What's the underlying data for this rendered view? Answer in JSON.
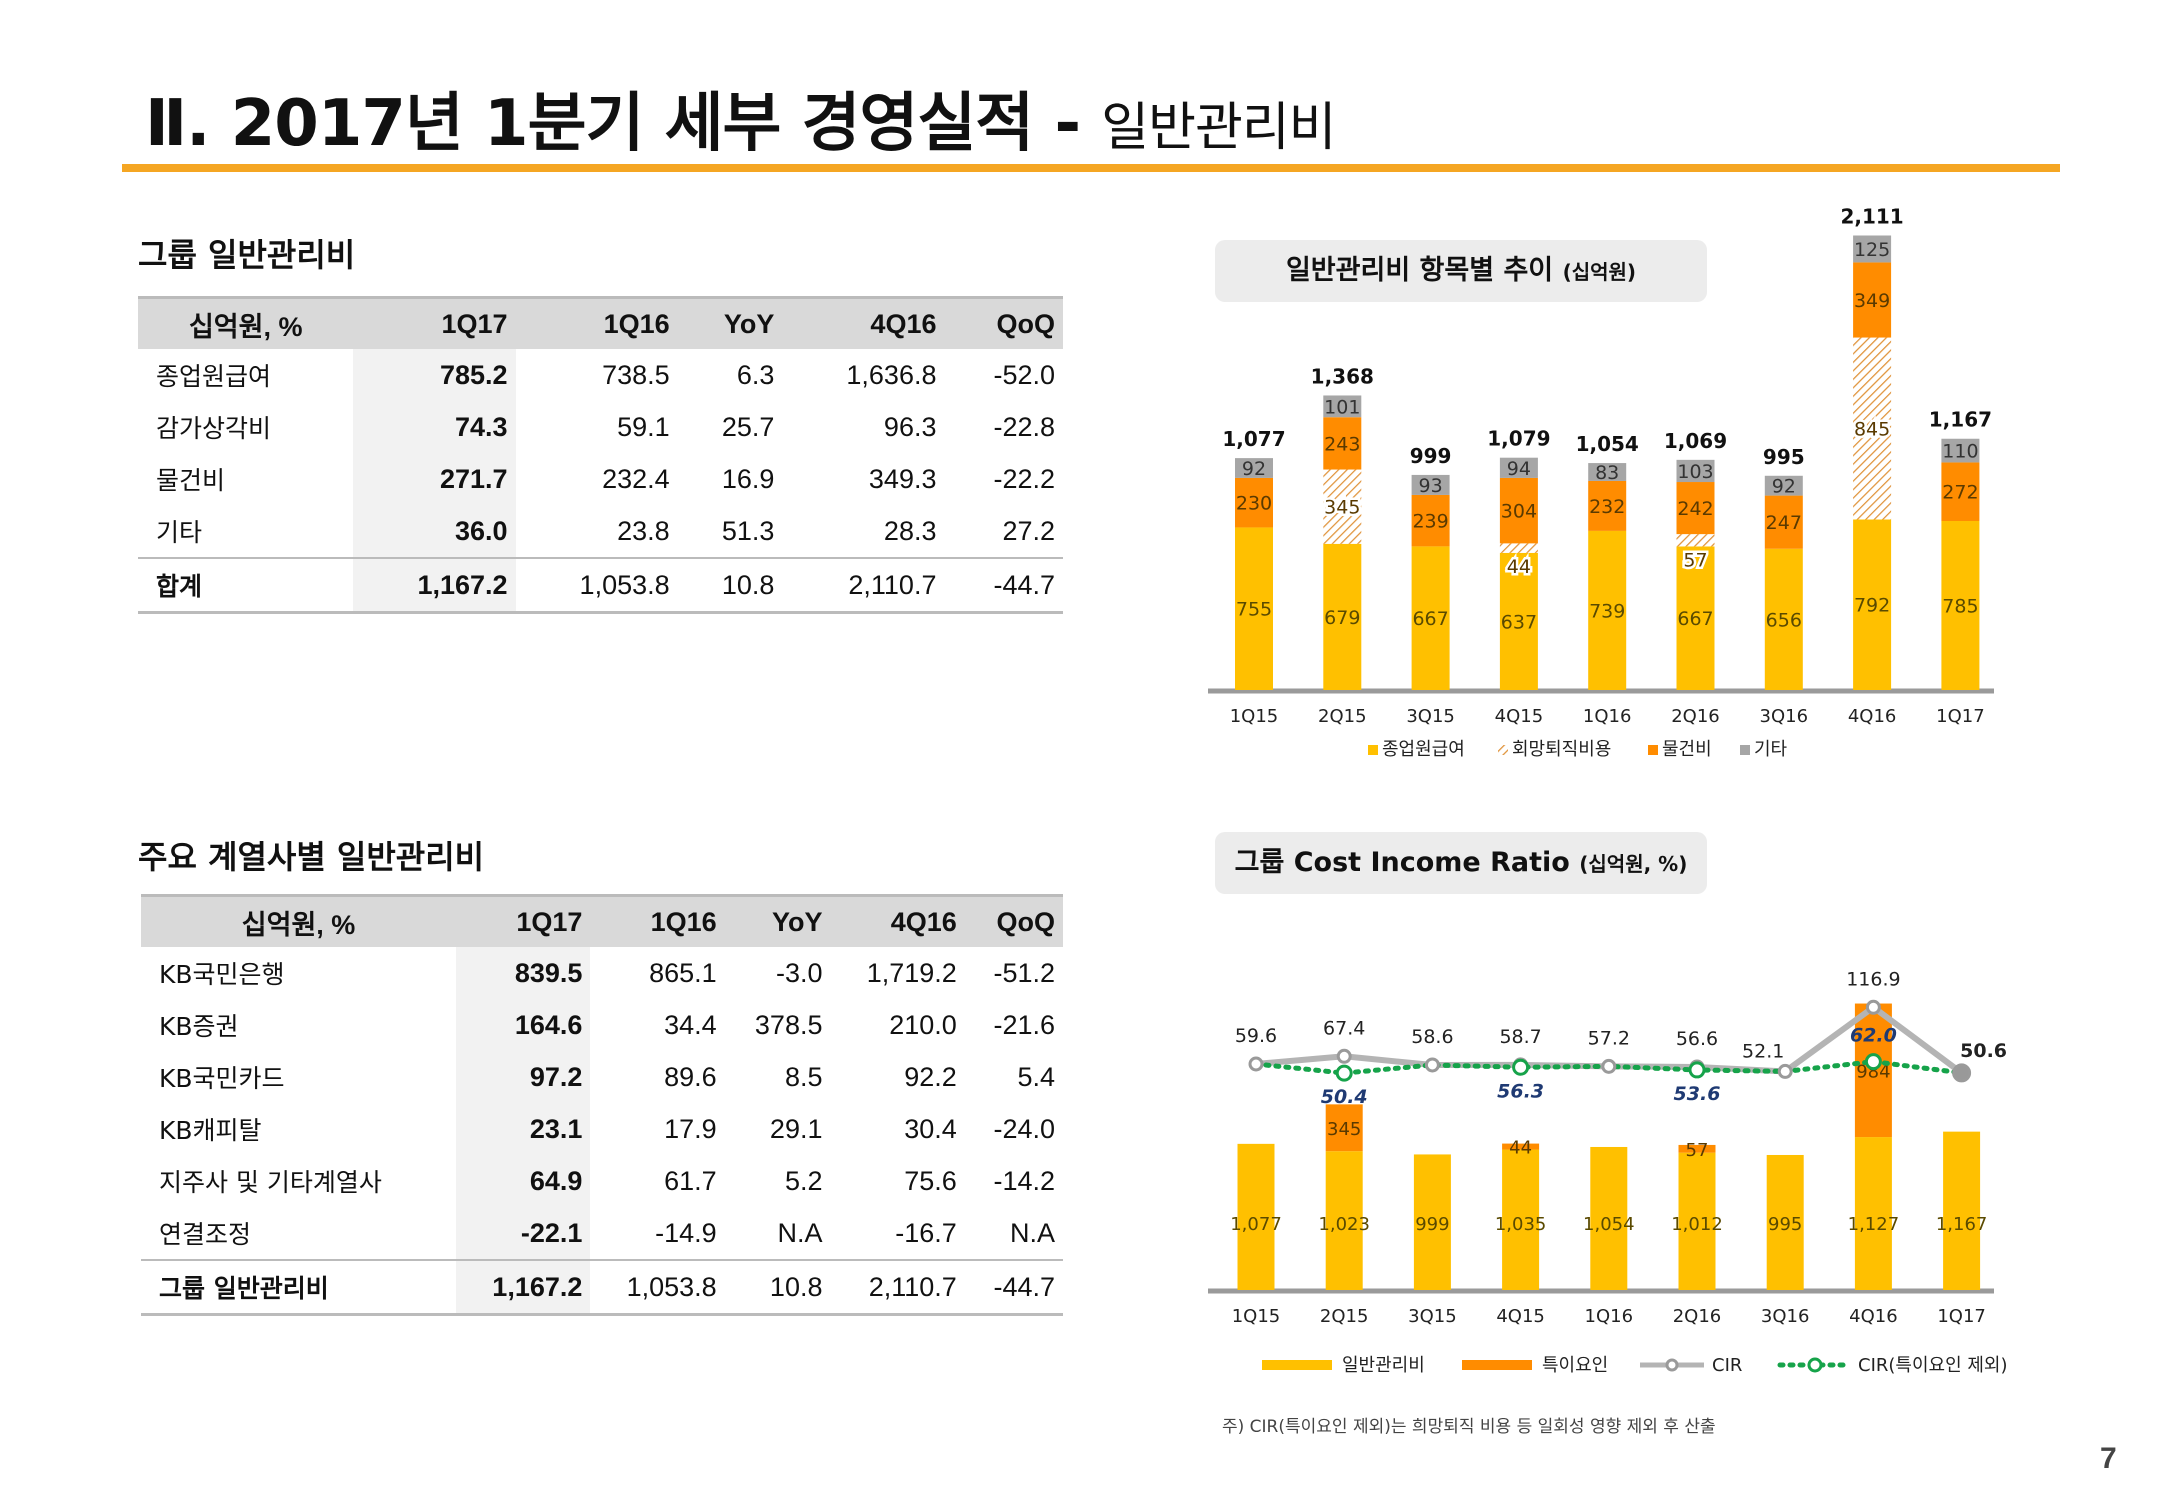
{
  "title": {
    "main": "Ⅱ. 2017년 1분기 세부 경영실적 -",
    "sub": "일반관리비"
  },
  "section1": {
    "title": "그룹 일반관리비",
    "headers": [
      "십억원, %",
      "1Q17",
      "1Q16",
      "YoY",
      "4Q16",
      "QoQ"
    ],
    "rows": [
      [
        "종업원급여",
        "785.2",
        "738.5",
        "6.3",
        "1,636.8",
        "-52.0"
      ],
      [
        "감가상각비",
        "74.3",
        "59.1",
        "25.7",
        "96.3",
        "-22.8"
      ],
      [
        "물건비",
        "271.7",
        "232.4",
        "16.9",
        "349.3",
        "-22.2"
      ],
      [
        "기타",
        "36.0",
        "23.8",
        "51.3",
        "28.3",
        "27.2"
      ]
    ],
    "total": [
      "합계",
      "1,167.2",
      "1,053.8",
      "10.8",
      "2,110.7",
      "-44.7"
    ]
  },
  "section2": {
    "title": "주요 계열사별 일반관리비",
    "headers": [
      "십억원, %",
      "1Q17",
      "1Q16",
      "YoY",
      "4Q16",
      "QoQ"
    ],
    "rows": [
      [
        "KB국민은행",
        "839.5",
        "865.1",
        "-3.0",
        "1,719.2",
        "-51.2"
      ],
      [
        "KB증권",
        "164.6",
        "34.4",
        "378.5",
        "210.0",
        "-21.6"
      ],
      [
        "KB국민카드",
        "97.2",
        "89.6",
        "8.5",
        "92.2",
        "5.4"
      ],
      [
        "KB캐피탈",
        "23.1",
        "17.9",
        "29.1",
        "30.4",
        "-24.0"
      ],
      [
        "지주사 및 기타계열사",
        "64.9",
        "61.7",
        "5.2",
        "75.6",
        "-14.2"
      ],
      [
        "연결조정",
        "-22.1",
        "-14.9",
        "N.A",
        "-16.7",
        "N.A"
      ]
    ],
    "total": [
      "그룹 일반관리비",
      "1,167.2",
      "1,053.8",
      "10.8",
      "2,110.7",
      "-44.7"
    ]
  },
  "chart1_title": {
    "main": "일반관리비 항목별 추이",
    "unit": "(십억원)"
  },
  "chart2_title": {
    "main": "그룹 Cost Income Ratio",
    "unit": "(십억원, %)"
  },
  "note": "주) CIR(특이요인 제외)는 희망퇴직 비용 등 일회성 영향 제외 후 산출",
  "page_number": "7",
  "colors": {
    "accent": "#f5a623",
    "yellow": "#ffc000",
    "orange": "#ff8c00",
    "gray": "#a6a6a6",
    "green": "#16a34a",
    "navy": "#1f3a73"
  },
  "chart_data": [
    {
      "type": "bar",
      "stacked": true,
      "title": "일반관리비 항목별 추이 (십억원)",
      "categories": [
        "1Q15",
        "2Q15",
        "3Q15",
        "4Q15",
        "1Q16",
        "2Q16",
        "3Q16",
        "4Q16",
        "1Q17"
      ],
      "series": [
        {
          "name": "종업원급여",
          "values": [
            755,
            679,
            667,
            637,
            739,
            667,
            656,
            792,
            785
          ]
        },
        {
          "name": "회망퇴직비용",
          "values": [
            null,
            345,
            null,
            44,
            null,
            57,
            null,
            845,
            null
          ]
        },
        {
          "name": "물건비",
          "values": [
            230,
            243,
            239,
            304,
            232,
            242,
            247,
            349,
            272
          ]
        },
        {
          "name": "기타",
          "values": [
            92,
            101,
            93,
            94,
            83,
            103,
            92,
            125,
            110
          ]
        }
      ],
      "totals": [
        "1,077",
        "1,368",
        "999",
        "1,079",
        "1,054",
        "1,069",
        "995",
        "2,111",
        "1,167"
      ],
      "legend_position": "bottom"
    },
    {
      "type": "bar",
      "stacked": true,
      "title": "그룹 Cost Income Ratio (십억원, %)",
      "categories": [
        "1Q15",
        "2Q15",
        "3Q15",
        "4Q15",
        "1Q16",
        "2Q16",
        "3Q16",
        "4Q16",
        "1Q17"
      ],
      "series": [
        {
          "name": "일반관리비",
          "values": [
            1077,
            1023,
            999,
            1035,
            1054,
            1012,
            995,
            1127,
            1167
          ]
        },
        {
          "name": "특이요인",
          "values": [
            null,
            345,
            null,
            44,
            null,
            57,
            null,
            984,
            null
          ]
        },
        {
          "name": "CIR",
          "type": "line",
          "values": [
            59.6,
            67.4,
            58.6,
            58.7,
            57.2,
            56.6,
            52.1,
            116.9,
            50.6
          ]
        },
        {
          "name": "CIR(특이요인 제외)",
          "type": "line",
          "values": [
            59.6,
            50.4,
            58.6,
            56.3,
            57.2,
            53.6,
            52.1,
            62.0,
            50.6
          ]
        }
      ],
      "legend_position": "bottom"
    }
  ]
}
